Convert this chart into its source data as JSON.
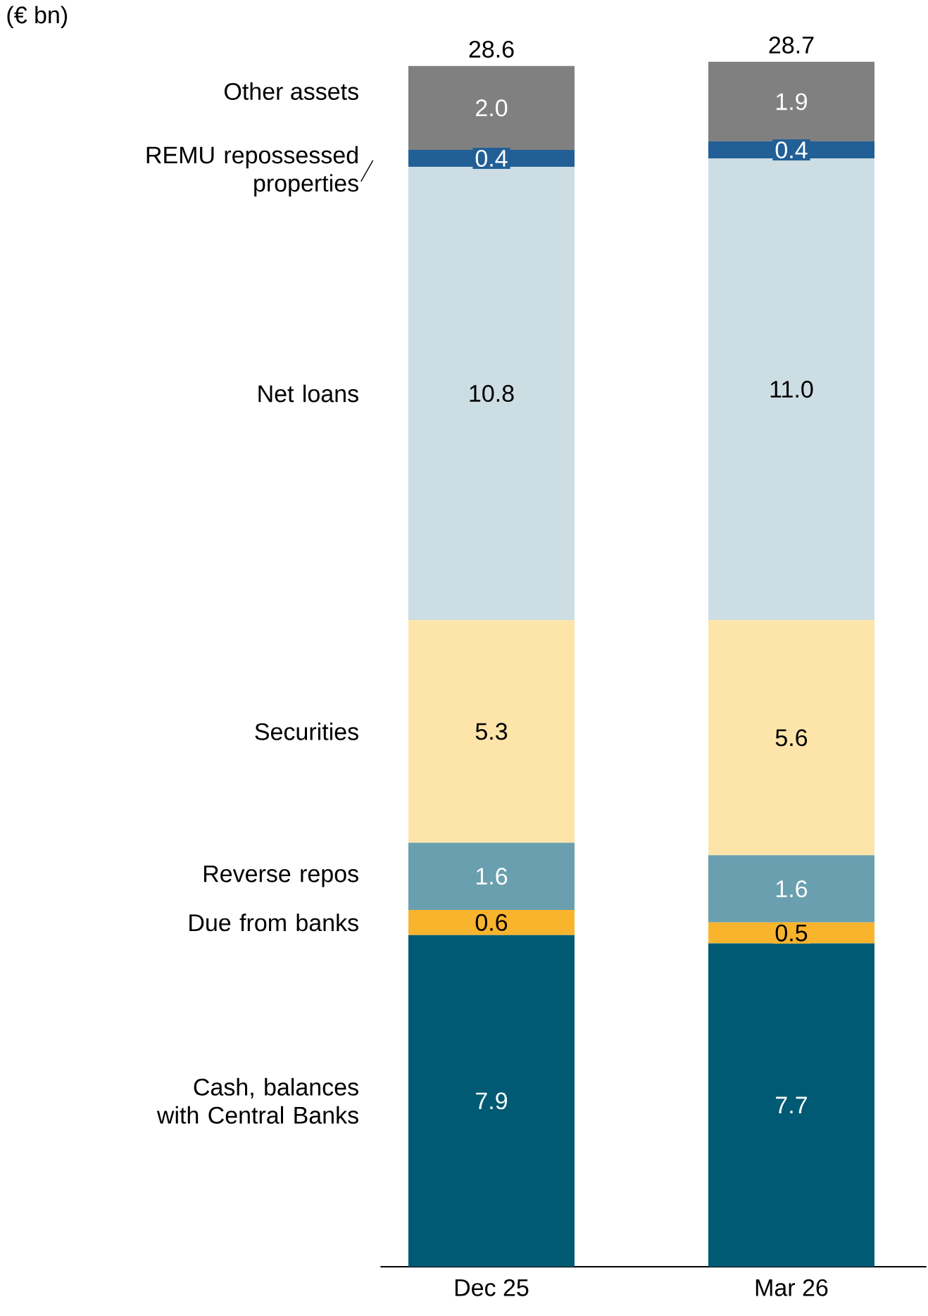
{
  "chart_data": {
    "type": "bar",
    "stacked": true,
    "annotations": [
      "(€ bn)"
    ],
    "categories": [
      "Dec 25",
      "Mar 26"
    ],
    "series": [
      {
        "name": "Cash, balances with Central Banks",
        "color": "#005a73",
        "values": [
          7.9,
          7.7
        ],
        "value_labels": [
          "7.9",
          "7.7"
        ]
      },
      {
        "name": "Due from banks",
        "color": "#f9b42d",
        "values": [
          0.6,
          0.5
        ],
        "value_labels": [
          "0.6",
          "0.5"
        ]
      },
      {
        "name": "Reverse repos",
        "color": "#6a9faf",
        "values": [
          1.6,
          1.6
        ],
        "value_labels": [
          "1.6",
          "1.6"
        ]
      },
      {
        "name": "Securities",
        "color": "#fde4a9",
        "values": [
          5.3,
          5.6
        ],
        "value_labels": [
          "5.3",
          "5.6"
        ]
      },
      {
        "name": "Net loans",
        "color": "#ccdde3",
        "values": [
          10.8,
          11.0
        ],
        "value_labels": [
          "10.8",
          "11.0"
        ]
      },
      {
        "name": "REMU repossessed properties",
        "color": "#215f96",
        "values": [
          0.4,
          0.4
        ],
        "value_labels": [
          "0.4",
          "0.4"
        ]
      },
      {
        "name": "Other assets",
        "color": "#808080",
        "values": [
          2.0,
          1.9
        ],
        "value_labels": [
          "2.0",
          "1.9"
        ]
      }
    ],
    "totals": [
      "28.6",
      "28.7"
    ]
  }
}
